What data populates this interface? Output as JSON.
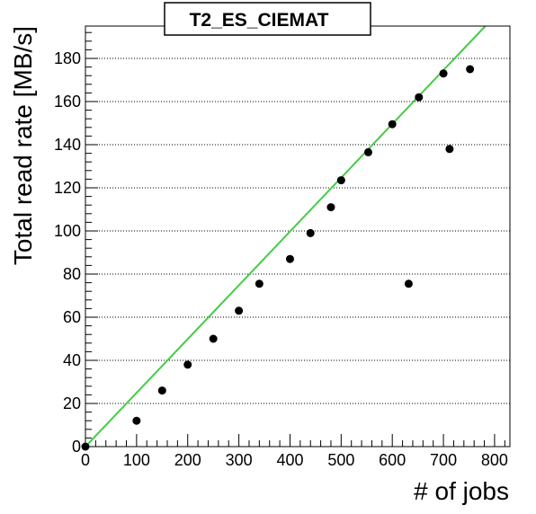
{
  "chart_data": {
    "type": "scatter",
    "title": "T2_ES_CIEMAT",
    "xlabel": "# of jobs",
    "ylabel": "Total read rate [MB/s]",
    "xlim": [
      0,
      830
    ],
    "ylim": [
      0,
      195
    ],
    "xticks": [
      0,
      100,
      200,
      300,
      400,
      500,
      600,
      700,
      800
    ],
    "yticks": [
      0,
      20,
      40,
      60,
      80,
      100,
      120,
      140,
      160,
      180
    ],
    "grid": {
      "horizontal": true,
      "vertical": false,
      "style": "dotted"
    },
    "series": [
      {
        "marker": "circle",
        "color": "#000000",
        "points": [
          {
            "x": 0,
            "y": 0
          },
          {
            "x": 100,
            "y": 12
          },
          {
            "x": 150,
            "y": 26
          },
          {
            "x": 200,
            "y": 38
          },
          {
            "x": 250,
            "y": 50
          },
          {
            "x": 300,
            "y": 63
          },
          {
            "x": 340,
            "y": 75.5
          },
          {
            "x": 400,
            "y": 87
          },
          {
            "x": 440,
            "y": 99
          },
          {
            "x": 480,
            "y": 111
          },
          {
            "x": 500,
            "y": 123.5
          },
          {
            "x": 553,
            "y": 136.5
          },
          {
            "x": 600,
            "y": 149.5
          },
          {
            "x": 632,
            "y": 75.5
          },
          {
            "x": 652,
            "y": 162
          },
          {
            "x": 700,
            "y": 173
          },
          {
            "x": 712,
            "y": 138
          },
          {
            "x": 752,
            "y": 175
          }
        ]
      }
    ],
    "fit_line": {
      "color": "#44cc44",
      "x0": 0,
      "y0": 0,
      "x1": 782,
      "y1": 195
    }
  }
}
